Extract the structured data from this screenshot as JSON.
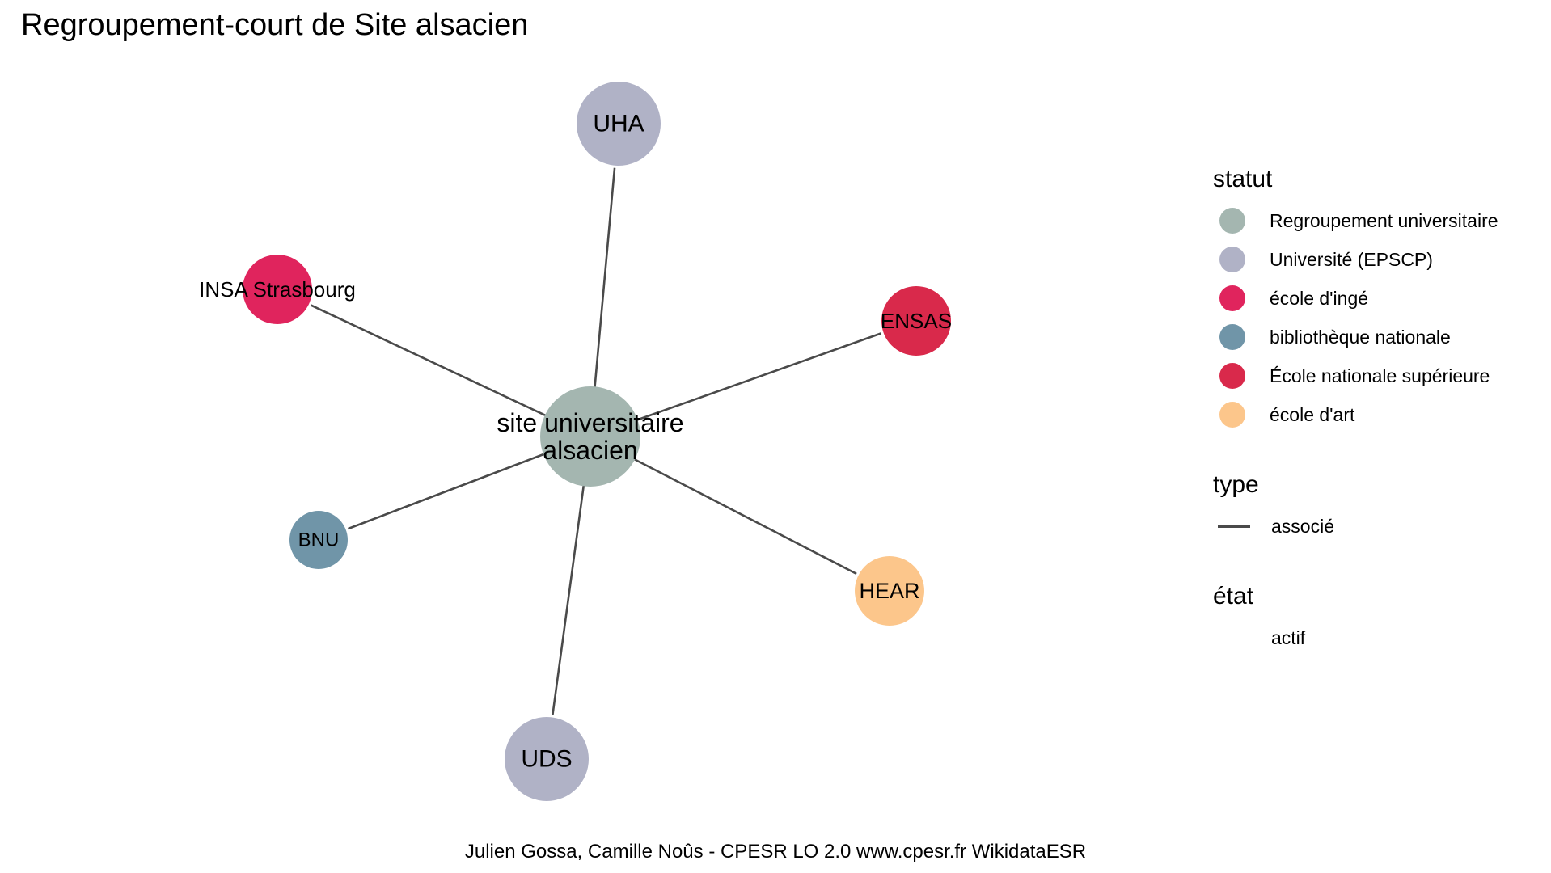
{
  "title": "Regroupement-court de Site alsacien",
  "caption": "Julien Gossa, Camille Noûs - CPESR LO 2.0 www.cpesr.fr WikidataESR",
  "colors": {
    "regroupement": "#a4b6b0",
    "universite": "#b0b2c6",
    "ecole_inge": "#e0245d",
    "bibliotheque": "#7095a8",
    "ecole_nationale": "#d9294b",
    "ecole_art": "#fcc68b",
    "edge": "#4a4a4a"
  },
  "nodes": [
    {
      "id": "center",
      "label_lines": [
        "site universitaire",
        "alsacien"
      ],
      "statut": "Regroupement universitaire",
      "color": "#a4b6b0"
    },
    {
      "id": "uha",
      "label_lines": [
        "UHA"
      ],
      "statut": "Université (EPSCP)",
      "color": "#b0b2c6"
    },
    {
      "id": "insa",
      "label_lines": [
        "INSA Strasbourg"
      ],
      "statut": "école d'ingé",
      "color": "#e0245d"
    },
    {
      "id": "ensas",
      "label_lines": [
        "ENSAS"
      ],
      "statut": "École nationale supérieure",
      "color": "#d9294b"
    },
    {
      "id": "bnu",
      "label_lines": [
        "BNU"
      ],
      "statut": "bibliothèque nationale",
      "color": "#7095a8"
    },
    {
      "id": "hear",
      "label_lines": [
        "HEAR"
      ],
      "statut": "école d'art",
      "color": "#fcc68b"
    },
    {
      "id": "uds",
      "label_lines": [
        "UDS"
      ],
      "statut": "Université (EPSCP)",
      "color": "#b0b2c6"
    }
  ],
  "edges": [
    {
      "from": "center",
      "to": "uha",
      "type": "associé"
    },
    {
      "from": "center",
      "to": "insa",
      "type": "associé"
    },
    {
      "from": "center",
      "to": "ensas",
      "type": "associé"
    },
    {
      "from": "center",
      "to": "bnu",
      "type": "associé"
    },
    {
      "from": "center",
      "to": "hear",
      "type": "associé"
    },
    {
      "from": "center",
      "to": "uds",
      "type": "associé"
    }
  ],
  "legend": {
    "statut_title": "statut",
    "statut_items": [
      {
        "label": "Regroupement universitaire",
        "color": "#a4b6b0"
      },
      {
        "label": "Université (EPSCP)",
        "color": "#b0b2c6"
      },
      {
        "label": "école d'ingé",
        "color": "#e0245d"
      },
      {
        "label": "bibliothèque nationale",
        "color": "#7095a8"
      },
      {
        "label": "École nationale supérieure",
        "color": "#d9294b"
      },
      {
        "label": "école d'art",
        "color": "#fcc68b"
      }
    ],
    "type_title": "type",
    "type_items": [
      {
        "label": "associé"
      }
    ],
    "etat_title": "état",
    "etat_items": [
      {
        "label": "actif"
      }
    ]
  }
}
